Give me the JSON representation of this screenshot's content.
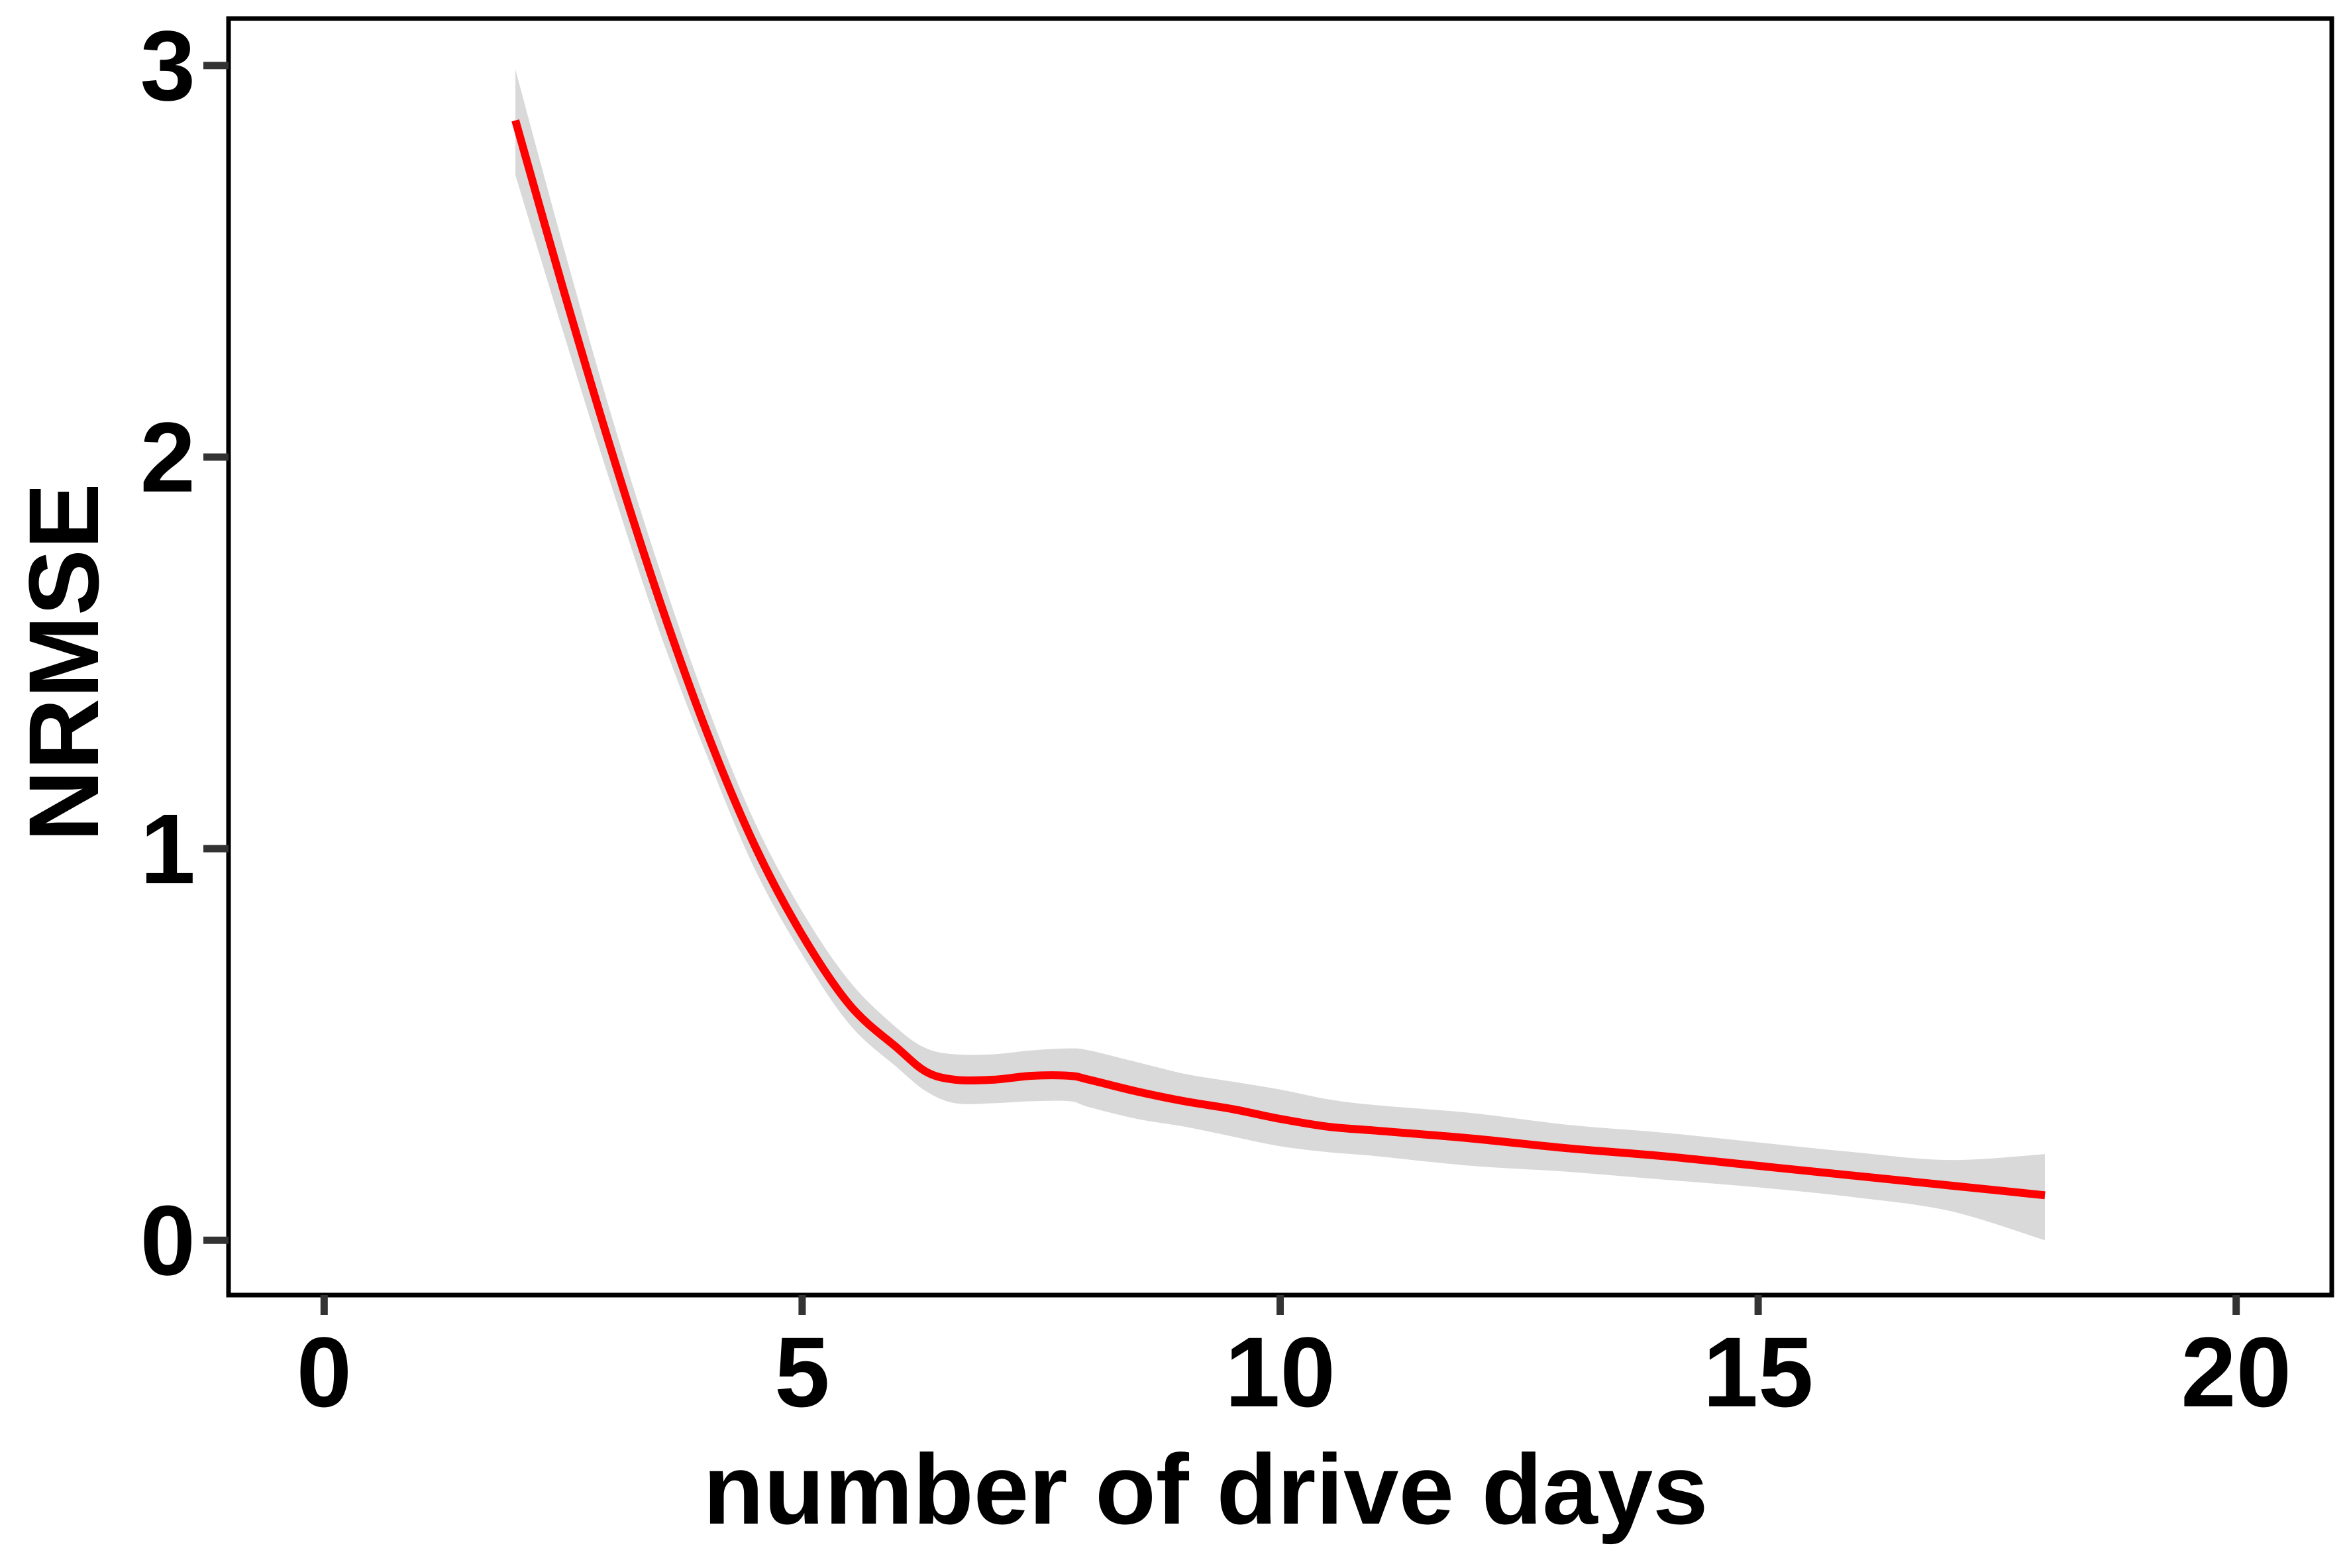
{
  "chart_data": {
    "type": "line",
    "title": "",
    "xlabel": "number of drive days",
    "ylabel": "NRMSE",
    "xlim": [
      -1,
      21
    ],
    "ylim": [
      -0.14,
      3.12
    ],
    "xticks": [
      0,
      5,
      10,
      15,
      20
    ],
    "yticks": [
      0,
      1,
      2,
      3
    ],
    "grid": false,
    "legend": "none",
    "series": [
      {
        "color": "#ff0000",
        "band_color": "#d9d9d9",
        "x": [
          2.0,
          2.5,
          3.0,
          3.5,
          4.0,
          4.5,
          5.0,
          5.5,
          6.0,
          6.3,
          6.6,
          7.0,
          7.4,
          7.8,
          8.0,
          8.5,
          9.0,
          9.5,
          10.0,
          10.5,
          11.0,
          12.0,
          13.0,
          14.0,
          15.0,
          16.0,
          17.0,
          18.0
        ],
        "y": [
          2.86,
          2.43,
          2.02,
          1.64,
          1.3,
          1.01,
          0.78,
          0.6,
          0.49,
          0.43,
          0.41,
          0.41,
          0.42,
          0.42,
          0.41,
          0.38,
          0.355,
          0.335,
          0.31,
          0.29,
          0.28,
          0.26,
          0.235,
          0.215,
          0.19,
          0.165,
          0.14,
          0.115
        ],
        "lower": [
          2.72,
          2.32,
          1.93,
          1.56,
          1.24,
          0.95,
          0.73,
          0.55,
          0.44,
          0.38,
          0.35,
          0.35,
          0.355,
          0.355,
          0.34,
          0.31,
          0.29,
          0.265,
          0.24,
          0.225,
          0.215,
          0.19,
          0.175,
          0.155,
          0.135,
          0.11,
          0.075,
          0.0
        ],
        "upper": [
          2.99,
          2.54,
          2.11,
          1.72,
          1.37,
          1.07,
          0.84,
          0.66,
          0.54,
          0.49,
          0.475,
          0.475,
          0.485,
          0.49,
          0.485,
          0.455,
          0.425,
          0.405,
          0.385,
          0.36,
          0.345,
          0.325,
          0.295,
          0.275,
          0.25,
          0.225,
          0.205,
          0.22
        ]
      }
    ]
  }
}
